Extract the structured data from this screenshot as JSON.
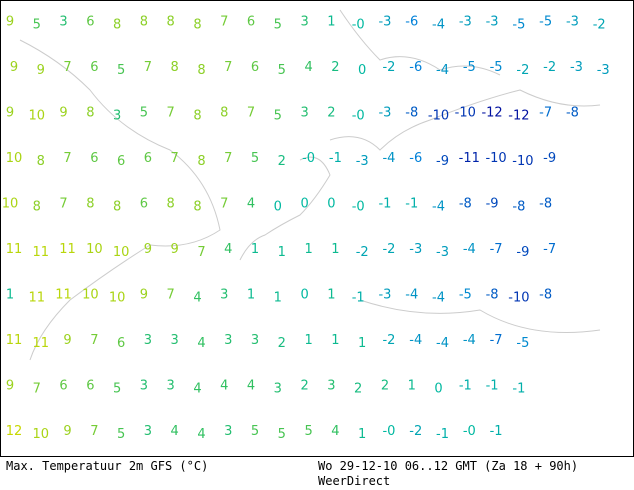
{
  "map": {
    "rows": [
      [
        "9",
        "5",
        "3",
        "6",
        "8",
        "8",
        "8",
        "8",
        "7",
        "6",
        "5",
        "3",
        "1",
        "-0",
        "-3",
        "-6",
        "-4",
        "-3",
        "-3",
        "-5",
        "-5",
        "-3",
        "-2"
      ],
      [
        "9",
        "9",
        "7",
        "6",
        "5",
        "7",
        "8",
        "8",
        "7",
        "6",
        "5",
        "4",
        "2",
        "0",
        "-2",
        "-6",
        "-4",
        "-5",
        "-5",
        "-2",
        "-2",
        "-3",
        "-3"
      ],
      [
        "9",
        "10",
        "9",
        "8",
        "3",
        "5",
        "7",
        "8",
        "8",
        "7",
        "5",
        "3",
        "2",
        "-0",
        "-3",
        "-8",
        "-10",
        "-10",
        "-12",
        "-12",
        "-7",
        "-8"
      ],
      [
        "10",
        "8",
        "7",
        "6",
        "6",
        "6",
        "7",
        "8",
        "7",
        "5",
        "2",
        "-0",
        "-1",
        "-3",
        "-4",
        "-6",
        "-9",
        "-11",
        "-10",
        "-10",
        "-9"
      ],
      [
        "10",
        "8",
        "7",
        "8",
        "8",
        "6",
        "8",
        "8",
        "7",
        "4",
        "0",
        "0",
        "0",
        "-0",
        "-1",
        "-1",
        "-4",
        "-8",
        "-9",
        "-8",
        "-8"
      ],
      [
        "11",
        "11",
        "11",
        "10",
        "10",
        "9",
        "9",
        "7",
        "4",
        "1",
        "1",
        "1",
        "1",
        "-2",
        "-2",
        "-3",
        "-3",
        "-4",
        "-7",
        "-9",
        "-7"
      ],
      [
        "1",
        "11",
        "11",
        "10",
        "10",
        "9",
        "7",
        "4",
        "3",
        "1",
        "1",
        "0",
        "1",
        "-1",
        "-3",
        "-4",
        "-4",
        "-5",
        "-8",
        "-10",
        "-8"
      ],
      [
        "11",
        "11",
        "9",
        "7",
        "6",
        "3",
        "3",
        "4",
        "3",
        "3",
        "2",
        "1",
        "1",
        "1",
        "-2",
        "-4",
        "-4",
        "-4",
        "-7",
        "-5"
      ],
      [
        "9",
        "7",
        "6",
        "6",
        "5",
        "3",
        "3",
        "4",
        "4",
        "4",
        "3",
        "2",
        "3",
        "2",
        "2",
        "1",
        "0",
        "-1",
        "-1",
        "-1"
      ],
      [
        "12",
        "10",
        "9",
        "7",
        "5",
        "3",
        "4",
        "4",
        "3",
        "5",
        "5",
        "5",
        "4",
        "1",
        "-0",
        "-2",
        "-1",
        "-0",
        "-1"
      ]
    ]
  },
  "footer": {
    "title": "Max. Temperatuur 2m GFS (°C)",
    "time": "Wo 29-12-10 06..12 GMT (Za 18 + 90h)",
    "source": "WeerDirect"
  }
}
